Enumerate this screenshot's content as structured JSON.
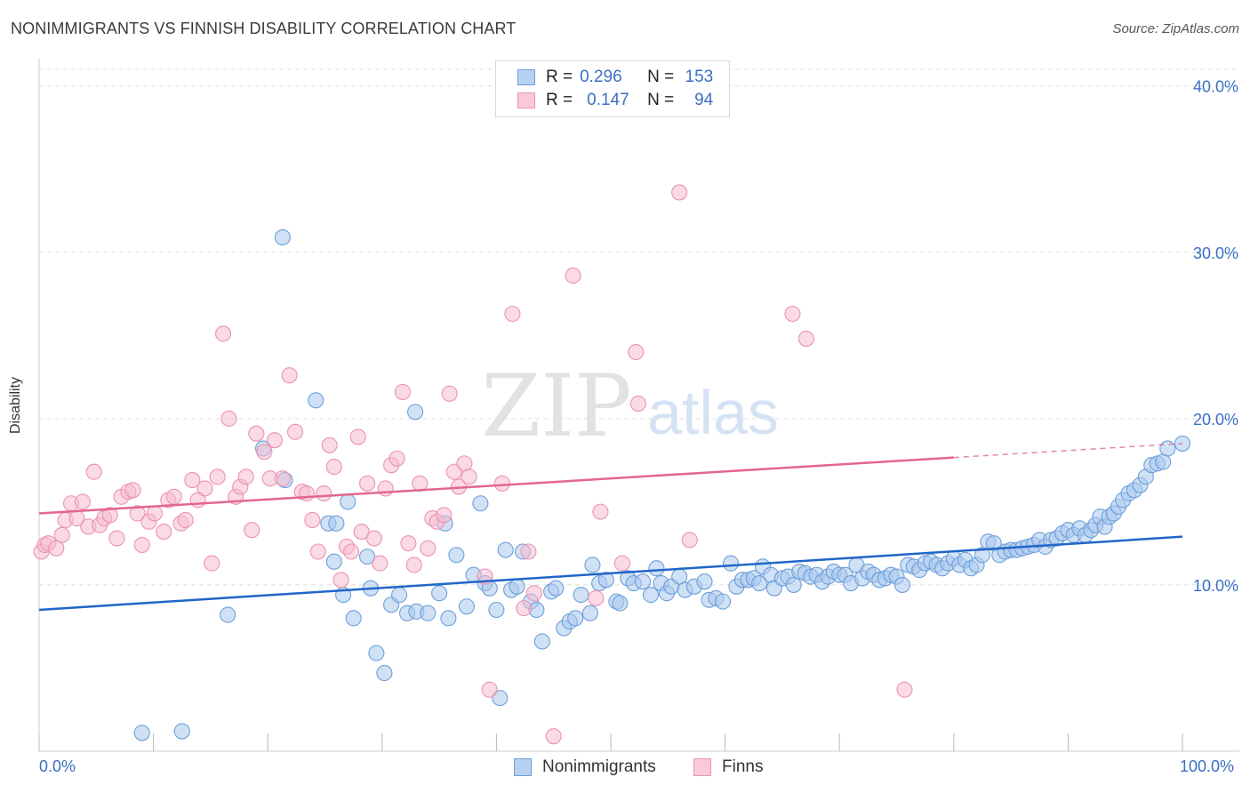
{
  "title": "NONIMMIGRANTS VS FINNISH DISABILITY CORRELATION CHART",
  "source": "Source: ZipAtlas.com",
  "watermark": {
    "zip": "ZIP",
    "atlas": "atlas"
  },
  "legend_top": [
    {
      "r_label": "R =",
      "r_value": "0.296",
      "n_label": "N =",
      "n_value": "153"
    },
    {
      "r_label": "R =",
      "r_value": "0.147",
      "n_label": "N =",
      "n_value": "94"
    }
  ],
  "legend_bottom": [
    "Nonimmigrants",
    "Finns"
  ],
  "x_axis_labels": {
    "min": "0.0%",
    "max": "100.0%"
  },
  "colors": {
    "blue_fill": "#a9c8ef",
    "blue_stroke": "#6d9fd9",
    "blue_line": "#2166c9",
    "pink_fill": "#f6bccf",
    "pink_stroke": "#eb93b2",
    "pink_line": "#e3668e",
    "axis_text": "#3a6fc4",
    "grid": "#dedede"
  },
  "chart_data": {
    "type": "scatter",
    "title": "NONIMMIGRANTS VS FINNISH DISABILITY CORRELATION CHART",
    "xlabel": "",
    "ylabel": "Disability",
    "xlim": [
      0,
      100
    ],
    "ylim": [
      0,
      41
    ],
    "y_ticks": [
      10,
      20,
      30,
      40
    ],
    "y_tick_labels": [
      "10.0%",
      "20.0%",
      "30.0%",
      "40.0%"
    ],
    "grid": true,
    "legend_position": "top-center",
    "series": [
      {
        "name": "Nonimmigrants",
        "r": 0.296,
        "n": 153,
        "trend": {
          "x": [
            0,
            100
          ],
          "y": [
            8.5,
            12.9
          ]
        },
        "trend_dashed_from": null,
        "points": [
          [
            9,
            1.1
          ],
          [
            12.5,
            1.2
          ],
          [
            16.5,
            8.2
          ],
          [
            19.6,
            18.2
          ],
          [
            21.3,
            30.9
          ],
          [
            21.5,
            16.3
          ],
          [
            24.2,
            21.1
          ],
          [
            25.3,
            13.7
          ],
          [
            25.8,
            11.4
          ],
          [
            26.0,
            13.7
          ],
          [
            26.6,
            9.4
          ],
          [
            27.0,
            15.0
          ],
          [
            27.5,
            8.0
          ],
          [
            28.7,
            11.7
          ],
          [
            29.0,
            9.8
          ],
          [
            29.5,
            5.9
          ],
          [
            30.2,
            4.7
          ],
          [
            30.8,
            8.8
          ],
          [
            31.5,
            9.4
          ],
          [
            32.2,
            8.3
          ],
          [
            32.9,
            20.4
          ],
          [
            33.0,
            8.4
          ],
          [
            34.0,
            8.3
          ],
          [
            35.0,
            9.5
          ],
          [
            35.5,
            13.7
          ],
          [
            35.8,
            8.0
          ],
          [
            36.5,
            11.8
          ],
          [
            37.4,
            8.7
          ],
          [
            38.0,
            10.6
          ],
          [
            38.6,
            14.9
          ],
          [
            39.0,
            10.1
          ],
          [
            39.4,
            9.8
          ],
          [
            40.0,
            8.5
          ],
          [
            40.3,
            3.2
          ],
          [
            40.8,
            12.1
          ],
          [
            41.3,
            9.7
          ],
          [
            41.8,
            9.9
          ],
          [
            42.3,
            12.0
          ],
          [
            43.0,
            9.0
          ],
          [
            43.5,
            8.5
          ],
          [
            44.0,
            6.6
          ],
          [
            44.8,
            9.6
          ],
          [
            45.2,
            9.8
          ],
          [
            45.9,
            7.4
          ],
          [
            46.4,
            7.8
          ],
          [
            46.9,
            8.0
          ],
          [
            47.4,
            9.4
          ],
          [
            48.2,
            8.3
          ],
          [
            48.4,
            11.2
          ],
          [
            49.0,
            10.1
          ],
          [
            49.6,
            10.3
          ],
          [
            50.5,
            9.0
          ],
          [
            50.8,
            8.9
          ],
          [
            51.5,
            10.4
          ],
          [
            52.0,
            10.1
          ],
          [
            52.8,
            10.2
          ],
          [
            53.5,
            9.4
          ],
          [
            54.0,
            11.0
          ],
          [
            54.4,
            10.1
          ],
          [
            54.9,
            9.5
          ],
          [
            55.3,
            9.9
          ],
          [
            56.0,
            10.5
          ],
          [
            56.5,
            9.7
          ],
          [
            57.3,
            9.9
          ],
          [
            58.2,
            10.2
          ],
          [
            58.6,
            9.1
          ],
          [
            59.2,
            9.2
          ],
          [
            59.8,
            9.0
          ],
          [
            60.5,
            11.3
          ],
          [
            61.0,
            9.9
          ],
          [
            61.5,
            10.3
          ],
          [
            62.0,
            10.3
          ],
          [
            62.5,
            10.4
          ],
          [
            63.0,
            10.1
          ],
          [
            63.3,
            11.1
          ],
          [
            64.0,
            10.6
          ],
          [
            64.3,
            9.8
          ],
          [
            65.0,
            10.4
          ],
          [
            65.5,
            10.5
          ],
          [
            66.0,
            10.0
          ],
          [
            66.5,
            10.8
          ],
          [
            67.0,
            10.7
          ],
          [
            67.5,
            10.5
          ],
          [
            68.0,
            10.6
          ],
          [
            68.5,
            10.2
          ],
          [
            69.0,
            10.5
          ],
          [
            69.5,
            10.8
          ],
          [
            70.0,
            10.6
          ],
          [
            70.5,
            10.6
          ],
          [
            71.0,
            10.1
          ],
          [
            71.5,
            11.2
          ],
          [
            72.0,
            10.4
          ],
          [
            72.5,
            10.8
          ],
          [
            73.0,
            10.6
          ],
          [
            73.5,
            10.3
          ],
          [
            74.0,
            10.4
          ],
          [
            74.5,
            10.6
          ],
          [
            75.0,
            10.5
          ],
          [
            75.5,
            10.0
          ],
          [
            76.0,
            11.2
          ],
          [
            76.5,
            11.1
          ],
          [
            77.0,
            10.9
          ],
          [
            77.5,
            11.3
          ],
          [
            78.0,
            11.4
          ],
          [
            78.5,
            11.2
          ],
          [
            79.0,
            11.0
          ],
          [
            79.5,
            11.3
          ],
          [
            80.0,
            11.6
          ],
          [
            80.5,
            11.2
          ],
          [
            81.0,
            11.5
          ],
          [
            81.5,
            11.0
          ],
          [
            82.0,
            11.2
          ],
          [
            82.5,
            11.8
          ],
          [
            83.0,
            12.6
          ],
          [
            83.5,
            12.5
          ],
          [
            84.0,
            11.8
          ],
          [
            84.5,
            12.0
          ],
          [
            85.0,
            12.1
          ],
          [
            85.5,
            12.1
          ],
          [
            86.0,
            12.2
          ],
          [
            86.5,
            12.3
          ],
          [
            87.0,
            12.4
          ],
          [
            87.5,
            12.7
          ],
          [
            88.0,
            12.3
          ],
          [
            88.5,
            12.7
          ],
          [
            89.0,
            12.8
          ],
          [
            89.5,
            13.1
          ],
          [
            90.0,
            13.3
          ],
          [
            90.5,
            13.0
          ],
          [
            91.0,
            13.4
          ],
          [
            91.5,
            13.0
          ],
          [
            92.0,
            13.3
          ],
          [
            92.4,
            13.6
          ],
          [
            92.8,
            14.1
          ],
          [
            93.2,
            13.5
          ],
          [
            93.6,
            14.1
          ],
          [
            94.0,
            14.3
          ],
          [
            94.4,
            14.7
          ],
          [
            94.8,
            15.1
          ],
          [
            95.3,
            15.5
          ],
          [
            95.8,
            15.7
          ],
          [
            96.3,
            16.0
          ],
          [
            96.8,
            16.5
          ],
          [
            97.3,
            17.2
          ],
          [
            97.8,
            17.3
          ],
          [
            98.3,
            17.4
          ],
          [
            98.7,
            18.2
          ],
          [
            100,
            18.5
          ]
        ]
      },
      {
        "name": "Finns",
        "r": 0.147,
        "n": 94,
        "trend": {
          "x": [
            0,
            100
          ],
          "y": [
            14.3,
            18.5
          ]
        },
        "trend_dashed_from": 80,
        "points": [
          [
            0.2,
            12.0
          ],
          [
            0.5,
            12.4
          ],
          [
            0.8,
            12.5
          ],
          [
            1.5,
            12.2
          ],
          [
            2.0,
            13.0
          ],
          [
            2.3,
            13.9
          ],
          [
            2.8,
            14.9
          ],
          [
            3.3,
            14.0
          ],
          [
            3.8,
            15.0
          ],
          [
            4.3,
            13.5
          ],
          [
            4.8,
            16.8
          ],
          [
            5.3,
            13.6
          ],
          [
            5.7,
            14.0
          ],
          [
            6.2,
            14.2
          ],
          [
            6.8,
            12.8
          ],
          [
            7.2,
            15.3
          ],
          [
            7.8,
            15.6
          ],
          [
            8.2,
            15.7
          ],
          [
            8.6,
            14.3
          ],
          [
            9.0,
            12.4
          ],
          [
            9.6,
            13.8
          ],
          [
            10.1,
            14.3
          ],
          [
            10.9,
            13.2
          ],
          [
            11.3,
            15.1
          ],
          [
            11.8,
            15.3
          ],
          [
            12.4,
            13.7
          ],
          [
            12.8,
            13.9
          ],
          [
            13.4,
            16.3
          ],
          [
            13.9,
            15.1
          ],
          [
            14.5,
            15.8
          ],
          [
            15.1,
            11.3
          ],
          [
            15.6,
            16.5
          ],
          [
            16.1,
            25.1
          ],
          [
            16.6,
            20.0
          ],
          [
            17.2,
            15.3
          ],
          [
            17.6,
            15.9
          ],
          [
            18.1,
            16.5
          ],
          [
            18.6,
            13.3
          ],
          [
            19.0,
            19.1
          ],
          [
            19.7,
            18.0
          ],
          [
            20.2,
            16.4
          ],
          [
            20.6,
            18.7
          ],
          [
            21.3,
            16.4
          ],
          [
            21.9,
            22.6
          ],
          [
            22.4,
            19.2
          ],
          [
            23.0,
            15.6
          ],
          [
            23.4,
            15.5
          ],
          [
            23.9,
            13.9
          ],
          [
            24.4,
            12.0
          ],
          [
            24.9,
            15.5
          ],
          [
            25.4,
            18.4
          ],
          [
            25.8,
            17.1
          ],
          [
            26.4,
            10.3
          ],
          [
            26.9,
            12.3
          ],
          [
            27.3,
            12.0
          ],
          [
            27.9,
            18.9
          ],
          [
            28.2,
            13.2
          ],
          [
            28.7,
            16.1
          ],
          [
            29.3,
            12.8
          ],
          [
            29.8,
            11.3
          ],
          [
            30.3,
            15.8
          ],
          [
            30.8,
            17.2
          ],
          [
            31.3,
            17.6
          ],
          [
            31.8,
            21.6
          ],
          [
            32.3,
            12.5
          ],
          [
            32.8,
            11.2
          ],
          [
            33.3,
            16.1
          ],
          [
            34.0,
            12.2
          ],
          [
            34.4,
            14.0
          ],
          [
            34.8,
            13.8
          ],
          [
            35.4,
            14.2
          ],
          [
            35.9,
            21.5
          ],
          [
            36.3,
            16.8
          ],
          [
            36.7,
            15.9
          ],
          [
            37.2,
            17.3
          ],
          [
            37.6,
            16.5
          ],
          [
            39.0,
            10.5
          ],
          [
            39.4,
            3.7
          ],
          [
            40.5,
            16.1
          ],
          [
            41.4,
            26.3
          ],
          [
            42.4,
            8.6
          ],
          [
            42.8,
            12.0
          ],
          [
            43.3,
            9.5
          ],
          [
            45.0,
            0.9
          ],
          [
            46.7,
            28.6
          ],
          [
            48.7,
            9.2
          ],
          [
            49.1,
            14.4
          ],
          [
            51.0,
            11.3
          ],
          [
            52.2,
            24.0
          ],
          [
            52.4,
            20.9
          ],
          [
            56.0,
            33.6
          ],
          [
            56.9,
            12.7
          ],
          [
            65.9,
            26.3
          ],
          [
            67.1,
            24.8
          ],
          [
            75.7,
            3.7
          ]
        ]
      }
    ]
  }
}
